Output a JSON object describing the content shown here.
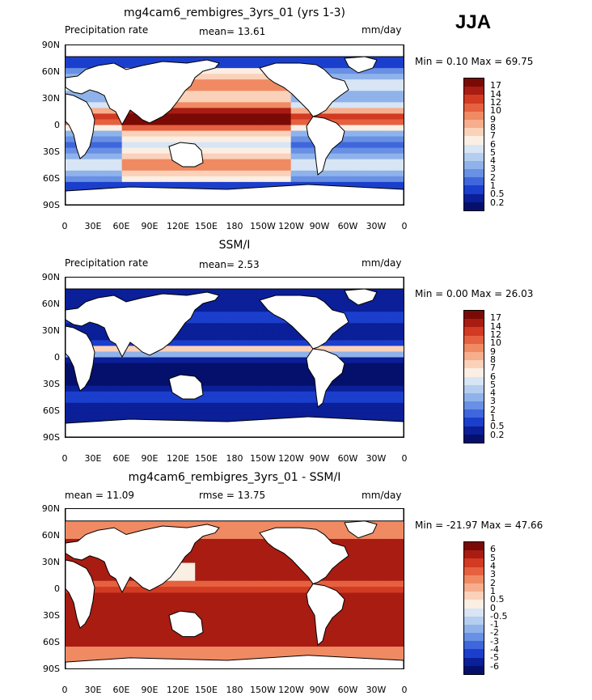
{
  "season_label": "JJA",
  "panels": [
    {
      "title": "mg4cam6_rembigres_3yrs_01 (yrs 1-3)",
      "left_text": "Precipitation rate",
      "center_text": "mean=   13.61",
      "right_text": "mm/day",
      "minmax": "Min =    0.10 Max =   69.75",
      "colorbar_labels": [
        "17",
        "14",
        "12",
        "10",
        "9",
        "8",
        "7",
        "6",
        "5",
        "4",
        "3",
        "2",
        "1",
        "0.5",
        "0.2"
      ],
      "colors": [
        "#7a0a06",
        "#a81c12",
        "#d23a22",
        "#e5613f",
        "#f08a63",
        "#f6ae8c",
        "#fbd1b9",
        "#fbeee3",
        "#d7e5f4",
        "#b5cdef",
        "#8fb2ea",
        "#6890e4",
        "#3f66dc",
        "#1b3fcc",
        "#0a1f98",
        "#05106c"
      ],
      "style": "model"
    },
    {
      "title": "SSM/I",
      "left_text": "Precipitation rate",
      "center_text": "mean=    2.53",
      "right_text": "mm/day",
      "minmax": "Min =    0.00 Max =   26.03",
      "colorbar_labels": [
        "17",
        "14",
        "12",
        "10",
        "9",
        "8",
        "7",
        "6",
        "5",
        "4",
        "3",
        "2",
        "1",
        "0.5",
        "0.2"
      ],
      "colors": [
        "#7a0a06",
        "#a81c12",
        "#d23a22",
        "#e5613f",
        "#f08a63",
        "#f6ae8c",
        "#fbd1b9",
        "#fbeee3",
        "#d7e5f4",
        "#b5cdef",
        "#8fb2ea",
        "#6890e4",
        "#3f66dc",
        "#1b3fcc",
        "#0a1f98",
        "#05106c"
      ],
      "style": "obs"
    },
    {
      "title": "mg4cam6_rembigres_3yrs_01 - SSM/I",
      "left_text": "mean =   11.09",
      "center_text": "rmse =   13.75",
      "right_text": "mm/day",
      "minmax": "Min = -21.97 Max =   47.66",
      "colorbar_labels": [
        "6",
        "5",
        "4",
        "3",
        "2",
        "1",
        "0.5",
        "0",
        "-0.5",
        "-1",
        "-2",
        "-3",
        "-4",
        "-5",
        "-6"
      ],
      "colors": [
        "#7a0a06",
        "#a81c12",
        "#d23a22",
        "#e5613f",
        "#f08a63",
        "#f6ae8c",
        "#fbd1b9",
        "#fbeee3",
        "#d7e5f4",
        "#b5cdef",
        "#8fb2ea",
        "#6890e4",
        "#3f66dc",
        "#1b3fcc",
        "#0a1f98",
        "#05106c"
      ],
      "style": "diff"
    }
  ],
  "lat_ticks": [
    "90N",
    "60N",
    "30N",
    "0",
    "30S",
    "60S",
    "90S"
  ],
  "lon_ticks": [
    "0",
    "30E",
    "60E",
    "90E",
    "120E",
    "150E",
    "180",
    "150W",
    "120W",
    "90W",
    "60W",
    "30W",
    "0"
  ]
}
